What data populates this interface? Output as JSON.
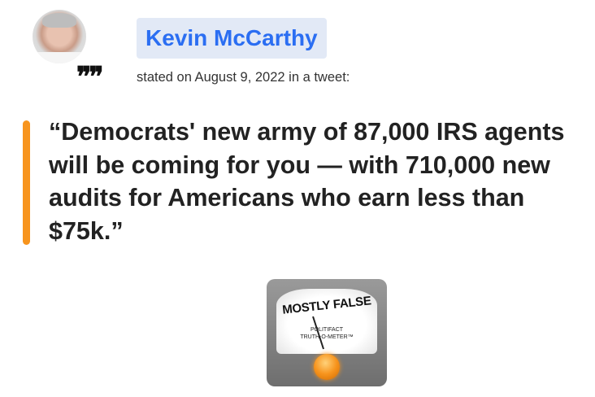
{
  "speaker": {
    "name": "Kevin McCarthy",
    "avatar_icon": "speaker-photo"
  },
  "statement": {
    "stated_line": "stated on August 9, 2022 in a tweet:",
    "quote": "“Democrats' new army of 87,000 IRS agents will be coming for you — with 710,000 new audits for Americans who earn less than $75k.”",
    "quote_icon": "quote-marks-icon"
  },
  "rating": {
    "label": "MOSTLY FALSE",
    "brand_line1": "POLITIFACT",
    "brand_line2": "TRUTH-O-METER™"
  },
  "colors": {
    "accent": "#f7941d",
    "link": "#2b6ef2",
    "name_bg": "#e2e9f6"
  }
}
